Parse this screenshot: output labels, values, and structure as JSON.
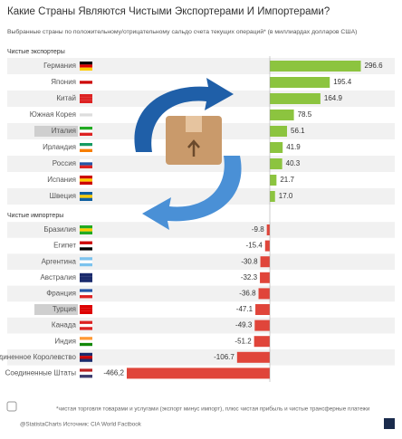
{
  "chart_data": {
    "type": "bar",
    "orientation": "horizontal",
    "title": "Какие Страны Являются Чистыми Экспортерами И Импортерами?",
    "subtitle": "Выбранные страны по положительному/отрицательному сальдо счета текущих операций* (в миллиардах долларов США)",
    "groups": [
      {
        "name": "Чистые экспортеры",
        "color": "#8cc43f",
        "categories": [
          "Германия",
          "Япония",
          "Китай",
          "Южная Корея",
          "Италия",
          "Ирландия",
          "Россия",
          "Испания",
          "Швеция"
        ],
        "values": [
          296.6,
          195.4,
          164.9,
          78.5,
          56.1,
          41.9,
          40.3,
          21.7,
          17.0
        ],
        "value_labels": [
          "296.6",
          "195.4",
          "164.9",
          "78.5",
          "56.1",
          "41.9",
          "40.3",
          "21.7",
          "17.0"
        ]
      },
      {
        "name": "Чистые импортеры",
        "color": "#e0453a",
        "categories": [
          "Бразилия",
          "Египет",
          "Аргентина",
          "Австралия",
          "Франция",
          "Турция",
          "Канада",
          "Индия",
          "Соединенное Королевство",
          "Соединенные Штаты"
        ],
        "values": [
          -9.8,
          -15.4,
          -30.8,
          -32.3,
          -36.8,
          -47.1,
          -49.3,
          -51.2,
          -106.7,
          -466.2
        ],
        "value_labels": [
          "-9.8",
          "-15.4",
          "-30.8",
          "-32.3",
          "-36.8",
          "-47.1",
          "-49.3",
          "-51.2",
          "-106.7",
          "-466,2"
        ]
      }
    ],
    "footnote": "*чистая торговля товарами и услугами (экспорт минус импорт), плюс чистая прибыль и чистые трансферные платежи",
    "source": "@StatistaCharts Источник: CIA World Factbook"
  }
}
